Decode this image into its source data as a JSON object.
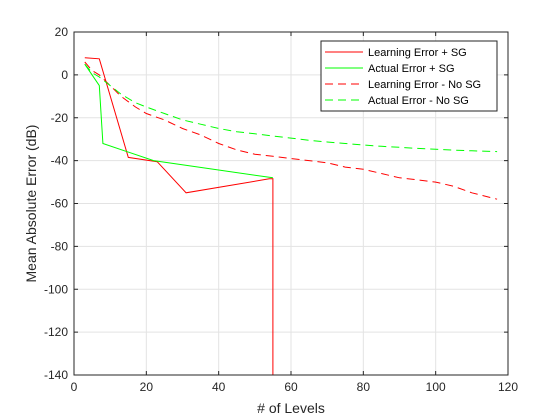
{
  "chart_data": {
    "type": "line",
    "title": "",
    "xlabel": "# of Levels",
    "ylabel": "Mean Absolute Error (dB)",
    "xlim": [
      0,
      120
    ],
    "ylim": [
      -140,
      20
    ],
    "xticks": [
      0,
      20,
      40,
      60,
      80,
      100,
      120
    ],
    "yticks": [
      20,
      0,
      -20,
      -40,
      -60,
      -80,
      -100,
      -120,
      -140
    ],
    "grid": true,
    "legend_position": "top-right",
    "series": [
      {
        "name": "Learning Error + SG",
        "color": "#ff0000",
        "dash": "solid",
        "x": [
          3,
          7,
          15,
          23,
          31,
          54,
          55,
          55
        ],
        "y": [
          8,
          7.5,
          -38.5,
          -40.5,
          -55,
          -48.5,
          -48.5,
          -140
        ]
      },
      {
        "name": "Actual Error + SG",
        "color": "#00ff00",
        "dash": "solid",
        "x": [
          3,
          7,
          8,
          22,
          55
        ],
        "y": [
          5,
          -5,
          -32,
          -40,
          -48
        ]
      },
      {
        "name": "Learning Error - No SG",
        "color": "#ff0000",
        "dash": "dashed",
        "x": [
          3,
          5,
          7,
          10,
          13,
          17,
          20,
          25,
          30,
          35,
          40,
          45,
          50,
          55,
          60,
          65,
          70,
          75,
          80,
          85,
          90,
          95,
          100,
          105,
          110,
          117
        ],
        "y": [
          6,
          2,
          0,
          -5,
          -10,
          -15,
          -18,
          -21,
          -25,
          -28,
          -32,
          -35,
          -37,
          -38,
          -39,
          -40,
          -41,
          -43,
          -44,
          -46,
          -48,
          -49,
          -50,
          -52,
          -55,
          -58
        ]
      },
      {
        "name": "Actual Error - No SG",
        "color": "#00ff00",
        "dash": "dashed",
        "x": [
          3,
          5,
          7,
          10,
          13,
          17,
          20,
          25,
          30,
          35,
          40,
          45,
          50,
          55,
          60,
          65,
          70,
          75,
          80,
          85,
          90,
          95,
          100,
          105,
          110,
          117
        ],
        "y": [
          5,
          1,
          -1,
          -5,
          -9,
          -13,
          -15,
          -18,
          -21,
          -23,
          -25,
          -26.5,
          -27.5,
          -28.5,
          -29.5,
          -30.5,
          -31.3,
          -32,
          -32.7,
          -33.3,
          -33.8,
          -34.3,
          -34.7,
          -35.1,
          -35.4,
          -35.8
        ]
      }
    ]
  }
}
